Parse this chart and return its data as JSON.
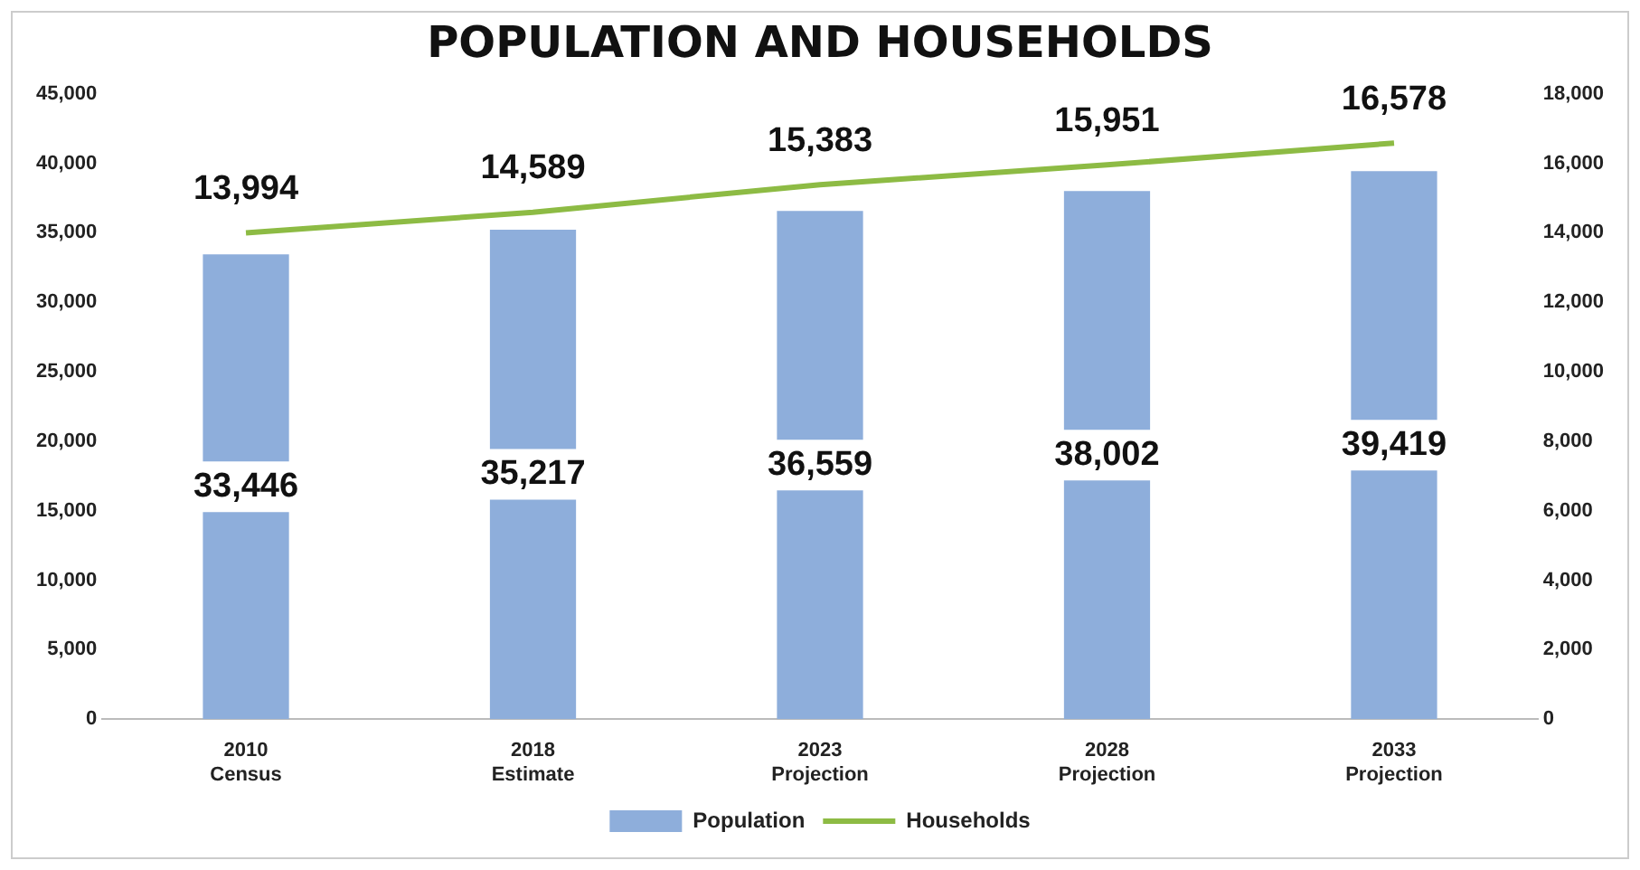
{
  "chart_data": {
    "type": "bar",
    "title": "POPULATION AND HOUSEHOLDS",
    "categories": [
      "2010 Census",
      "2018 Estimate",
      "2023 Projection",
      "2028 Projection",
      "2033 Projection"
    ],
    "series": [
      {
        "name": "Population",
        "color": "#8eaedb",
        "values": [
          33446,
          35217,
          36559,
          38002,
          39419
        ],
        "value_labels": [
          "33,446",
          "35,217",
          "36,559",
          "38,002",
          "39,419"
        ]
      },
      {
        "name": "Households",
        "type": "line",
        "axis": "y2",
        "color": "#8dbb44",
        "values": [
          13994,
          14589,
          15383,
          15951,
          16578
        ],
        "value_labels": [
          "13,994",
          "14,589",
          "15,383",
          "15,951",
          "16,578"
        ]
      }
    ],
    "ylim": [
      0,
      45000
    ],
    "yticks": [
      0,
      {
        "value": 5000,
        "label": "5,000"
      },
      {
        "value": 10000,
        "label": "10,000"
      },
      {
        "value": 15000,
        "label": "15,000"
      },
      {
        "value": 20000,
        "label": "20,000"
      },
      {
        "value": 25000,
        "label": "25,000"
      },
      {
        "value": 30000,
        "label": "30,000"
      },
      {
        "value": 35000,
        "label": "35,000"
      },
      {
        "value": 40000,
        "label": "40,000"
      },
      {
        "value": 45000,
        "label": "45,000"
      }
    ],
    "y2lim": [
      0,
      18000
    ],
    "y2ticks": [
      0,
      {
        "value": 2000,
        "label": "2,000"
      },
      {
        "value": 4000,
        "label": "4,000"
      },
      {
        "value": 6000,
        "label": "6,000"
      },
      {
        "value": 8000,
        "label": "8,000"
      },
      {
        "value": 10000,
        "label": "10,000"
      },
      {
        "value": 12000,
        "label": "12,000"
      },
      {
        "value": 14000,
        "label": "14,000"
      },
      {
        "value": 16000,
        "label": "16,000"
      },
      {
        "value": 18000,
        "label": "18,000"
      }
    ],
    "grid": false,
    "legend": "bottom",
    "marker": "none"
  }
}
